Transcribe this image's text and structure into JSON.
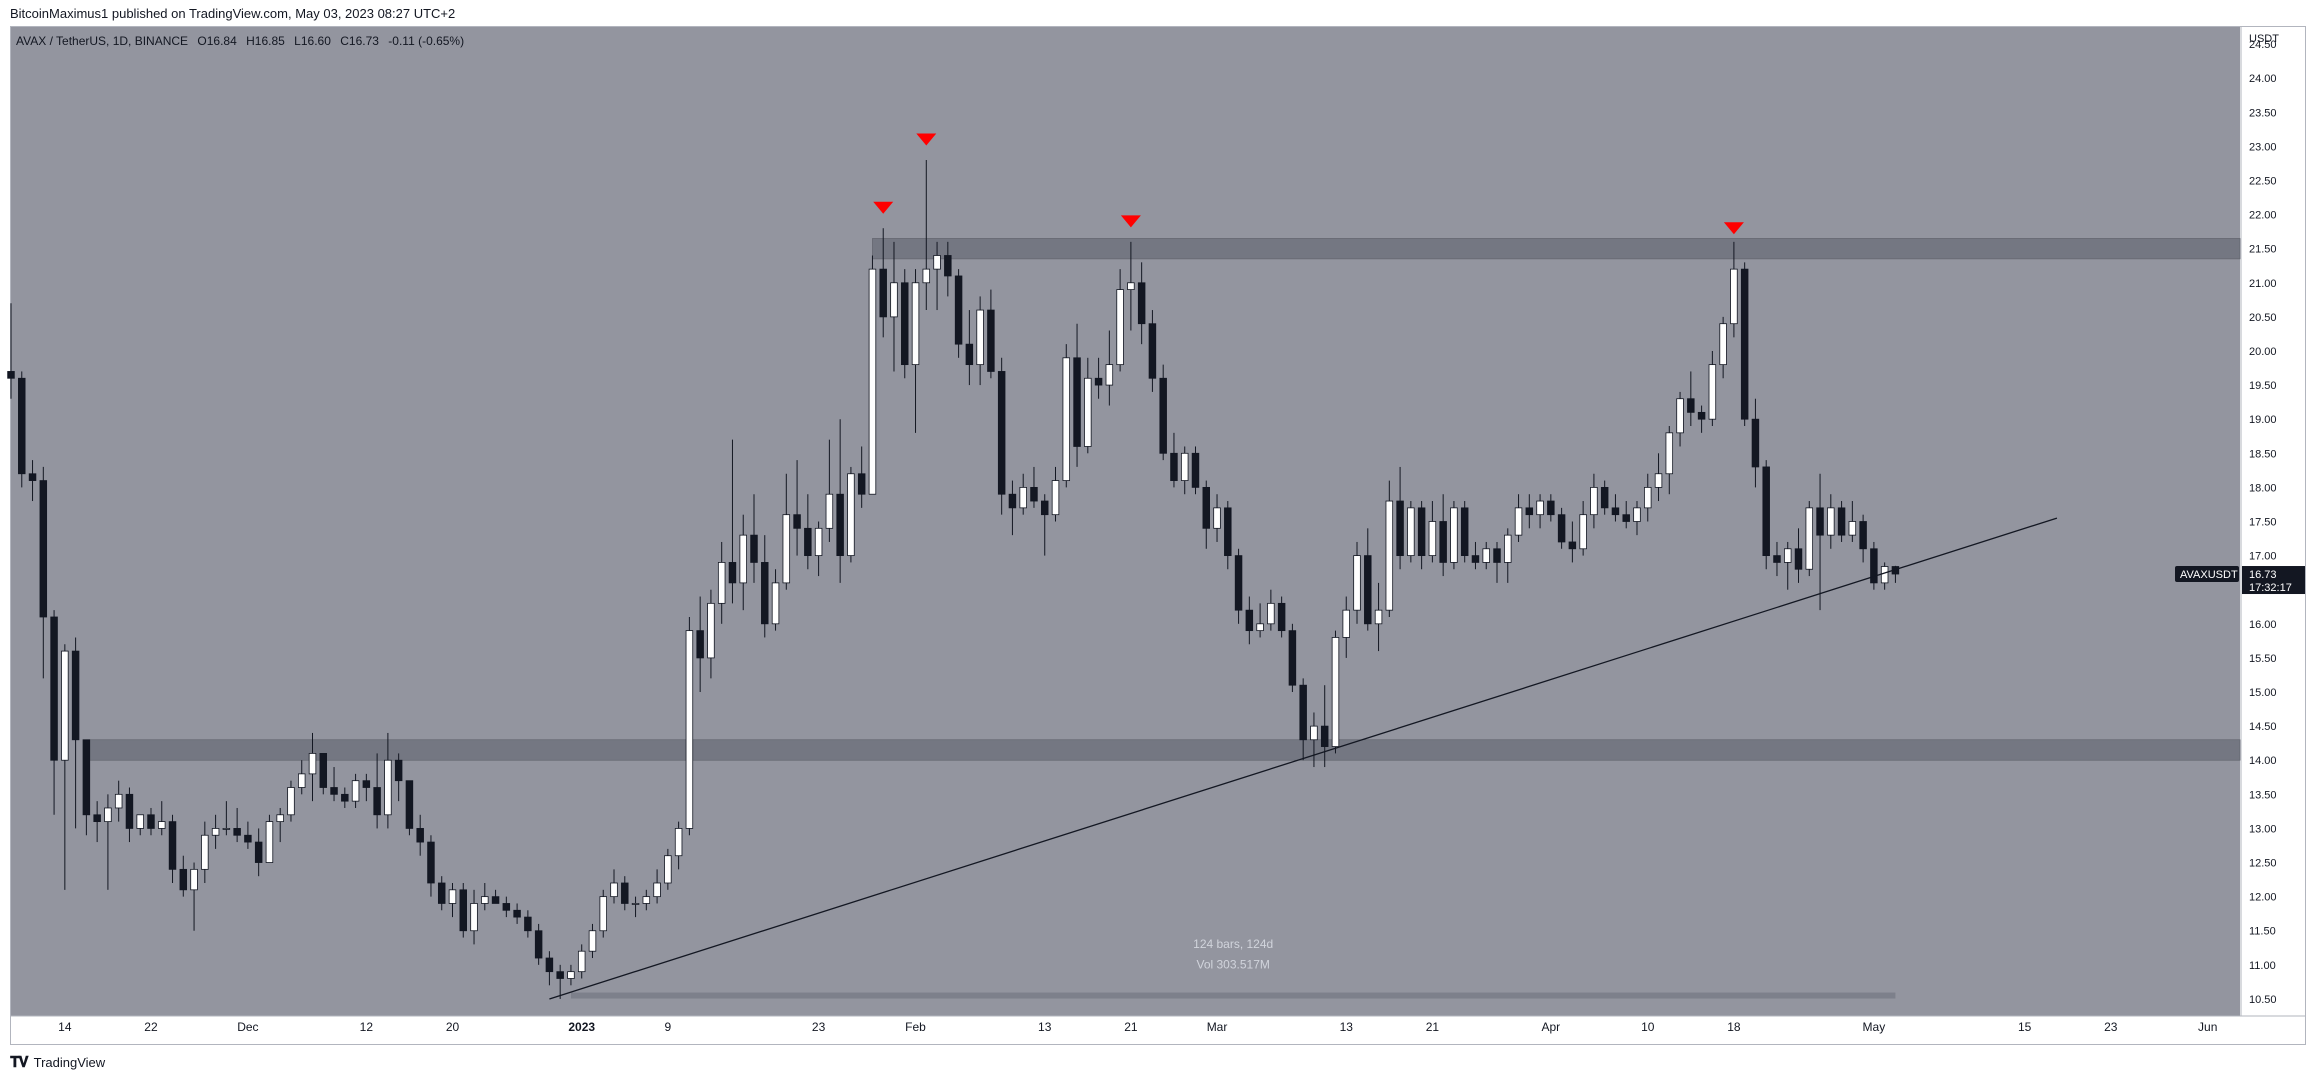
{
  "header": {
    "published": "BitcoinMaximus1 published on TradingView.com, May 03, 2023 08:27 UTC+2"
  },
  "legend": {
    "symbol": "AVAX / TetherUS, 1D, BINANCE",
    "open_label": "O",
    "open": "16.84",
    "high_label": "H",
    "high": "16.85",
    "low_label": "L",
    "low": "16.60",
    "close_label": "C",
    "close": "16.73",
    "change": "-0.11 (-0.65%)"
  },
  "price_axis": {
    "currency": "USDT",
    "ticks": [
      "24.50",
      "24.00",
      "23.50",
      "23.00",
      "22.50",
      "22.00",
      "21.50",
      "21.00",
      "20.50",
      "20.00",
      "19.50",
      "19.00",
      "18.50",
      "18.00",
      "17.50",
      "17.00",
      "16.50",
      "16.00",
      "15.50",
      "15.00",
      "14.50",
      "14.00",
      "13.50",
      "13.00",
      "12.50",
      "12.00",
      "11.50",
      "11.00",
      "10.50"
    ]
  },
  "time_axis": {
    "ticks": [
      "14",
      "22",
      "Dec",
      "12",
      "20",
      "2023",
      "9",
      "23",
      "Feb",
      "13",
      "21",
      "Mar",
      "13",
      "21",
      "Apr",
      "10",
      "18",
      "May",
      "15",
      "23",
      "Jun"
    ]
  },
  "price_tag": {
    "symbol": "AVAXUSDT",
    "price": "16.73",
    "countdown": "17:32:17"
  },
  "range_info": {
    "bars": "124 bars, 124d",
    "volume": "Vol 303.517M"
  },
  "footer": {
    "brand": "TradingView"
  },
  "colors": {
    "chart_bg": "#93959f",
    "candle_up": "#ffffff",
    "candle_down": "#131722",
    "zone": "#6f727c",
    "marker": "#ff0000",
    "price_tag_bg": "#131722"
  },
  "chart_data": {
    "type": "candlestick",
    "title": "AVAX / TetherUS, 1D, BINANCE",
    "ylabel": "USDT",
    "ylim": [
      10.25,
      24.75
    ],
    "x_range": [
      "2022-11-09",
      "2023-06-04"
    ],
    "grid": false,
    "price_axis_scale": "linear",
    "candles": [
      [
        "2022-11-09",
        19.7,
        20.7,
        19.3,
        19.6
      ],
      [
        "2022-11-10",
        19.6,
        19.7,
        18.0,
        18.2
      ],
      [
        "2022-11-11",
        18.2,
        18.4,
        17.8,
        18.1
      ],
      [
        "2022-11-12",
        18.1,
        18.3,
        15.2,
        16.1
      ],
      [
        "2022-11-13",
        16.1,
        16.2,
        13.2,
        14.0
      ],
      [
        "2022-11-14",
        14.0,
        15.7,
        12.1,
        15.6
      ],
      [
        "2022-11-15",
        15.6,
        15.8,
        13.0,
        14.3
      ],
      [
        "2022-11-16",
        14.3,
        14.3,
        12.9,
        13.2
      ],
      [
        "2022-11-17",
        13.2,
        13.4,
        12.8,
        13.1
      ],
      [
        "2022-11-18",
        13.1,
        13.5,
        12.1,
        13.3
      ],
      [
        "2022-11-19",
        13.3,
        13.7,
        13.1,
        13.5
      ],
      [
        "2022-11-20",
        13.5,
        13.6,
        12.8,
        13.0
      ],
      [
        "2022-11-21",
        13.0,
        13.2,
        12.9,
        13.2
      ],
      [
        "2022-11-22",
        13.2,
        13.3,
        12.9,
        13.0
      ],
      [
        "2022-11-23",
        13.0,
        13.4,
        12.9,
        13.1
      ],
      [
        "2022-11-24",
        13.1,
        13.2,
        12.2,
        12.4
      ],
      [
        "2022-11-25",
        12.4,
        12.6,
        12.0,
        12.1
      ],
      [
        "2022-11-26",
        12.1,
        12.5,
        11.5,
        12.4
      ],
      [
        "2022-11-27",
        12.4,
        13.1,
        12.2,
        12.9
      ],
      [
        "2022-11-28",
        12.9,
        13.2,
        12.7,
        13.0
      ],
      [
        "2022-11-29",
        13.0,
        13.4,
        12.9,
        13.0
      ],
      [
        "2022-11-30",
        13.0,
        13.3,
        12.8,
        12.9
      ],
      [
        "2022-12-01",
        12.9,
        13.1,
        12.7,
        12.8
      ],
      [
        "2022-12-02",
        12.8,
        13.0,
        12.3,
        12.5
      ],
      [
        "2022-12-03",
        12.5,
        13.2,
        12.5,
        13.1
      ],
      [
        "2022-12-04",
        13.1,
        13.3,
        12.8,
        13.2
      ],
      [
        "2022-12-05",
        13.2,
        13.7,
        13.1,
        13.6
      ],
      [
        "2022-12-06",
        13.6,
        14.0,
        13.5,
        13.8
      ],
      [
        "2022-12-07",
        13.8,
        14.4,
        13.4,
        14.1
      ],
      [
        "2022-12-08",
        14.1,
        14.1,
        13.5,
        13.6
      ],
      [
        "2022-12-09",
        13.6,
        13.9,
        13.4,
        13.5
      ],
      [
        "2022-12-10",
        13.5,
        13.6,
        13.3,
        13.4
      ],
      [
        "2022-12-11",
        13.4,
        13.8,
        13.3,
        13.7
      ],
      [
        "2022-12-12",
        13.7,
        13.8,
        13.4,
        13.6
      ],
      [
        "2022-12-13",
        13.6,
        14.1,
        13.0,
        13.2
      ],
      [
        "2022-12-14",
        13.2,
        14.4,
        13.0,
        14.0
      ],
      [
        "2022-12-15",
        14.0,
        14.1,
        13.4,
        13.7
      ],
      [
        "2022-12-16",
        13.7,
        13.7,
        12.9,
        13.0
      ],
      [
        "2022-12-17",
        13.0,
        13.2,
        12.6,
        12.8
      ],
      [
        "2022-12-18",
        12.8,
        12.9,
        12.0,
        12.2
      ],
      [
        "2022-12-19",
        12.2,
        12.3,
        11.8,
        11.9
      ],
      [
        "2022-12-20",
        11.9,
        12.2,
        11.7,
        12.1
      ],
      [
        "2022-12-21",
        12.1,
        12.2,
        11.4,
        11.5
      ],
      [
        "2022-12-22",
        11.5,
        12.1,
        11.3,
        11.9
      ],
      [
        "2022-12-23",
        11.9,
        12.2,
        11.8,
        12.0
      ],
      [
        "2022-12-24",
        12.0,
        12.1,
        11.9,
        11.9
      ],
      [
        "2022-12-25",
        11.9,
        12.0,
        11.7,
        11.8
      ],
      [
        "2022-12-26",
        11.8,
        11.9,
        11.6,
        11.7
      ],
      [
        "2022-12-27",
        11.7,
        11.8,
        11.4,
        11.5
      ],
      [
        "2022-12-28",
        11.5,
        11.6,
        11.0,
        11.1
      ],
      [
        "2022-12-29",
        11.1,
        11.2,
        10.7,
        10.9
      ],
      [
        "2022-12-30",
        10.9,
        11.0,
        10.5,
        10.8
      ],
      [
        "2022-12-31",
        10.8,
        11.0,
        10.7,
        10.9
      ],
      [
        "2023-01-01",
        10.9,
        11.3,
        10.8,
        11.2
      ],
      [
        "2023-01-02",
        11.2,
        11.6,
        11.1,
        11.5
      ],
      [
        "2023-01-03",
        11.5,
        12.1,
        11.4,
        12.0
      ],
      [
        "2023-01-04",
        12.0,
        12.4,
        11.9,
        12.2
      ],
      [
        "2023-01-05",
        12.2,
        12.3,
        11.8,
        11.9
      ],
      [
        "2023-01-06",
        11.9,
        12.0,
        11.7,
        11.9
      ],
      [
        "2023-01-07",
        11.9,
        12.1,
        11.8,
        12.0
      ],
      [
        "2023-01-08",
        12.0,
        12.4,
        11.9,
        12.2
      ],
      [
        "2023-01-09",
        12.2,
        12.7,
        12.1,
        12.6
      ],
      [
        "2023-01-10",
        12.6,
        13.1,
        12.4,
        13.0
      ],
      [
        "2023-01-11",
        13.0,
        16.1,
        12.9,
        15.9
      ],
      [
        "2023-01-12",
        15.9,
        16.4,
        15.0,
        15.5
      ],
      [
        "2023-01-13",
        15.5,
        16.5,
        15.2,
        16.3
      ],
      [
        "2023-01-14",
        16.3,
        17.2,
        16.0,
        16.9
      ],
      [
        "2023-01-15",
        16.9,
        18.7,
        16.3,
        16.6
      ],
      [
        "2023-01-16",
        16.6,
        17.6,
        16.2,
        17.3
      ],
      [
        "2023-01-17",
        17.3,
        17.9,
        16.6,
        16.9
      ],
      [
        "2023-01-18",
        16.9,
        17.3,
        15.8,
        16.0
      ],
      [
        "2023-01-19",
        16.0,
        16.8,
        15.9,
        16.6
      ],
      [
        "2023-01-20",
        16.6,
        18.2,
        16.5,
        17.6
      ],
      [
        "2023-01-21",
        17.6,
        18.4,
        17.0,
        17.4
      ],
      [
        "2023-01-22",
        17.4,
        17.9,
        16.8,
        17.0
      ],
      [
        "2023-01-23",
        17.0,
        17.5,
        16.7,
        17.4
      ],
      [
        "2023-01-24",
        17.4,
        18.7,
        17.2,
        17.9
      ],
      [
        "2023-01-25",
        17.9,
        19.0,
        16.6,
        17.0
      ],
      [
        "2023-01-26",
        17.0,
        18.3,
        16.9,
        18.2
      ],
      [
        "2023-01-27",
        18.2,
        18.6,
        17.7,
        17.9
      ],
      [
        "2023-01-28",
        17.9,
        21.4,
        17.9,
        21.2
      ],
      [
        "2023-01-29",
        21.2,
        21.8,
        20.2,
        20.5
      ],
      [
        "2023-01-30",
        20.5,
        21.6,
        19.7,
        21.0
      ],
      [
        "2023-01-31",
        21.0,
        21.2,
        19.6,
        19.8
      ],
      [
        "2023-02-01",
        19.8,
        21.2,
        18.8,
        21.0
      ],
      [
        "2023-02-02",
        21.0,
        22.8,
        20.6,
        21.2
      ],
      [
        "2023-02-03",
        21.2,
        21.6,
        20.6,
        21.4
      ],
      [
        "2023-02-04",
        21.4,
        21.6,
        20.8,
        21.1
      ],
      [
        "2023-02-05",
        21.1,
        21.2,
        19.9,
        20.1
      ],
      [
        "2023-02-06",
        20.1,
        20.6,
        19.5,
        19.8
      ],
      [
        "2023-02-07",
        19.8,
        20.8,
        19.5,
        20.6
      ],
      [
        "2023-02-08",
        20.6,
        20.9,
        19.6,
        19.7
      ],
      [
        "2023-02-09",
        19.7,
        19.9,
        17.6,
        17.9
      ],
      [
        "2023-02-10",
        17.9,
        18.1,
        17.3,
        17.7
      ],
      [
        "2023-02-11",
        17.7,
        18.2,
        17.6,
        18.0
      ],
      [
        "2023-02-12",
        18.0,
        18.3,
        17.7,
        17.8
      ],
      [
        "2023-02-13",
        17.8,
        17.9,
        17.0,
        17.6
      ],
      [
        "2023-02-14",
        17.6,
        18.3,
        17.5,
        18.1
      ],
      [
        "2023-02-15",
        18.1,
        20.1,
        18.0,
        19.9
      ],
      [
        "2023-02-16",
        19.9,
        20.4,
        18.3,
        18.6
      ],
      [
        "2023-02-17",
        18.6,
        19.9,
        18.5,
        19.6
      ],
      [
        "2023-02-18",
        19.6,
        19.9,
        19.3,
        19.5
      ],
      [
        "2023-02-19",
        19.5,
        20.3,
        19.2,
        19.8
      ],
      [
        "2023-02-20",
        19.8,
        21.2,
        19.7,
        20.9
      ],
      [
        "2023-02-21",
        20.9,
        21.6,
        20.3,
        21.0
      ],
      [
        "2023-02-22",
        21.0,
        21.3,
        20.1,
        20.4
      ],
      [
        "2023-02-23",
        20.4,
        20.6,
        19.4,
        19.6
      ],
      [
        "2023-02-24",
        19.6,
        19.8,
        18.4,
        18.5
      ],
      [
        "2023-02-25",
        18.5,
        18.8,
        18.0,
        18.1
      ],
      [
        "2023-02-26",
        18.1,
        18.6,
        17.9,
        18.5
      ],
      [
        "2023-02-27",
        18.5,
        18.6,
        17.9,
        18.0
      ],
      [
        "2023-02-28",
        18.0,
        18.1,
        17.1,
        17.4
      ],
      [
        "2023-03-01",
        17.4,
        17.9,
        17.2,
        17.7
      ],
      [
        "2023-03-02",
        17.7,
        17.8,
        16.8,
        17.0
      ],
      [
        "2023-03-03",
        17.0,
        17.1,
        16.0,
        16.2
      ],
      [
        "2023-03-04",
        16.2,
        16.4,
        15.7,
        15.9
      ],
      [
        "2023-03-05",
        15.9,
        16.3,
        15.8,
        16.0
      ],
      [
        "2023-03-06",
        16.0,
        16.5,
        15.9,
        16.3
      ],
      [
        "2023-03-07",
        16.3,
        16.4,
        15.8,
        15.9
      ],
      [
        "2023-03-08",
        15.9,
        16.0,
        15.0,
        15.1
      ],
      [
        "2023-03-09",
        15.1,
        15.2,
        14.0,
        14.3
      ],
      [
        "2023-03-10",
        14.3,
        14.7,
        13.9,
        14.5
      ],
      [
        "2023-03-11",
        14.5,
        15.1,
        13.9,
        14.2
      ],
      [
        "2023-03-12",
        14.2,
        15.9,
        14.1,
        15.8
      ],
      [
        "2023-03-13",
        15.8,
        16.4,
        15.5,
        16.2
      ],
      [
        "2023-03-14",
        16.2,
        17.2,
        16.0,
        17.0
      ],
      [
        "2023-03-15",
        17.0,
        17.4,
        15.9,
        16.0
      ],
      [
        "2023-03-16",
        16.0,
        16.6,
        15.6,
        16.2
      ],
      [
        "2023-03-17",
        16.2,
        18.1,
        16.1,
        17.8
      ],
      [
        "2023-03-18",
        17.8,
        18.3,
        16.8,
        17.0
      ],
      [
        "2023-03-19",
        17.0,
        17.8,
        16.9,
        17.7
      ],
      [
        "2023-03-20",
        17.7,
        17.8,
        16.8,
        17.0
      ],
      [
        "2023-03-21",
        17.0,
        17.8,
        16.9,
        17.5
      ],
      [
        "2023-03-22",
        17.5,
        17.9,
        16.7,
        16.9
      ],
      [
        "2023-03-23",
        16.9,
        17.8,
        16.8,
        17.7
      ],
      [
        "2023-03-24",
        17.7,
        17.8,
        16.9,
        17.0
      ],
      [
        "2023-03-25",
        17.0,
        17.2,
        16.8,
        16.9
      ],
      [
        "2023-03-26",
        16.9,
        17.2,
        16.8,
        17.1
      ],
      [
        "2023-03-27",
        17.1,
        17.2,
        16.6,
        16.9
      ],
      [
        "2023-03-28",
        16.9,
        17.4,
        16.6,
        17.3
      ],
      [
        "2023-03-29",
        17.3,
        17.9,
        17.2,
        17.7
      ],
      [
        "2023-03-30",
        17.7,
        17.9,
        17.4,
        17.6
      ],
      [
        "2023-03-31",
        17.6,
        17.9,
        17.4,
        17.8
      ],
      [
        "2023-04-01",
        17.8,
        17.9,
        17.5,
        17.6
      ],
      [
        "2023-04-02",
        17.6,
        17.7,
        17.1,
        17.2
      ],
      [
        "2023-04-03",
        17.2,
        17.5,
        16.9,
        17.1
      ],
      [
        "2023-04-04",
        17.1,
        17.8,
        17.0,
        17.6
      ],
      [
        "2023-04-05",
        17.6,
        18.2,
        17.4,
        18.0
      ],
      [
        "2023-04-06",
        18.0,
        18.1,
        17.6,
        17.7
      ],
      [
        "2023-04-07",
        17.7,
        17.9,
        17.5,
        17.6
      ],
      [
        "2023-04-08",
        17.6,
        17.8,
        17.4,
        17.5
      ],
      [
        "2023-04-09",
        17.5,
        17.8,
        17.3,
        17.7
      ],
      [
        "2023-04-10",
        17.7,
        18.2,
        17.5,
        18.0
      ],
      [
        "2023-04-11",
        18.0,
        18.5,
        17.8,
        18.2
      ],
      [
        "2023-04-12",
        18.2,
        18.9,
        17.9,
        18.8
      ],
      [
        "2023-04-13",
        18.8,
        19.4,
        18.6,
        19.3
      ],
      [
        "2023-04-14",
        19.3,
        19.7,
        18.9,
        19.1
      ],
      [
        "2023-04-15",
        19.1,
        19.2,
        18.8,
        19.0
      ],
      [
        "2023-04-16",
        19.0,
        20.0,
        18.9,
        19.8
      ],
      [
        "2023-04-17",
        19.8,
        20.5,
        19.6,
        20.4
      ],
      [
        "2023-04-18",
        20.4,
        21.6,
        20.2,
        21.2
      ],
      [
        "2023-04-19",
        21.2,
        21.3,
        18.9,
        19.0
      ],
      [
        "2023-04-20",
        19.0,
        19.3,
        18.0,
        18.3
      ],
      [
        "2023-04-21",
        18.3,
        18.4,
        16.8,
        17.0
      ],
      [
        "2023-04-22",
        17.0,
        17.2,
        16.7,
        16.9
      ],
      [
        "2023-04-23",
        16.9,
        17.2,
        16.5,
        17.1
      ],
      [
        "2023-04-24",
        17.1,
        17.4,
        16.6,
        16.8
      ],
      [
        "2023-04-25",
        16.8,
        17.8,
        16.7,
        17.7
      ],
      [
        "2023-04-26",
        17.7,
        18.2,
        16.2,
        17.3
      ],
      [
        "2023-04-27",
        17.3,
        17.9,
        17.1,
        17.7
      ],
      [
        "2023-04-28",
        17.7,
        17.8,
        17.2,
        17.3
      ],
      [
        "2023-04-29",
        17.3,
        17.8,
        17.2,
        17.5
      ],
      [
        "2023-04-30",
        17.5,
        17.6,
        16.9,
        17.1
      ],
      [
        "2023-05-01",
        17.1,
        17.2,
        16.5,
        16.6
      ],
      [
        "2023-05-02",
        16.6,
        16.9,
        16.5,
        16.84
      ],
      [
        "2023-05-03",
        16.84,
        16.85,
        16.6,
        16.73
      ]
    ],
    "zones": [
      {
        "from": "2023-01-28",
        "to": "2023-06-04",
        "low": 21.35,
        "high": 21.65
      },
      {
        "from": "2022-11-16",
        "to": "2023-06-04",
        "low": 14.0,
        "high": 14.3
      }
    ],
    "trendline": {
      "x1": "2022-12-29",
      "y1": 10.5,
      "x2": "2023-05-18",
      "y2": 17.55
    },
    "markers": [
      {
        "date": "2023-01-29",
        "price": 22.1
      },
      {
        "date": "2023-02-02",
        "price": 23.1
      },
      {
        "date": "2023-02-21",
        "price": 21.9
      },
      {
        "date": "2023-04-18",
        "price": 21.8
      }
    ],
    "date_range": {
      "from": "2022-12-31",
      "to": "2023-05-03",
      "y": 10.55
    }
  }
}
